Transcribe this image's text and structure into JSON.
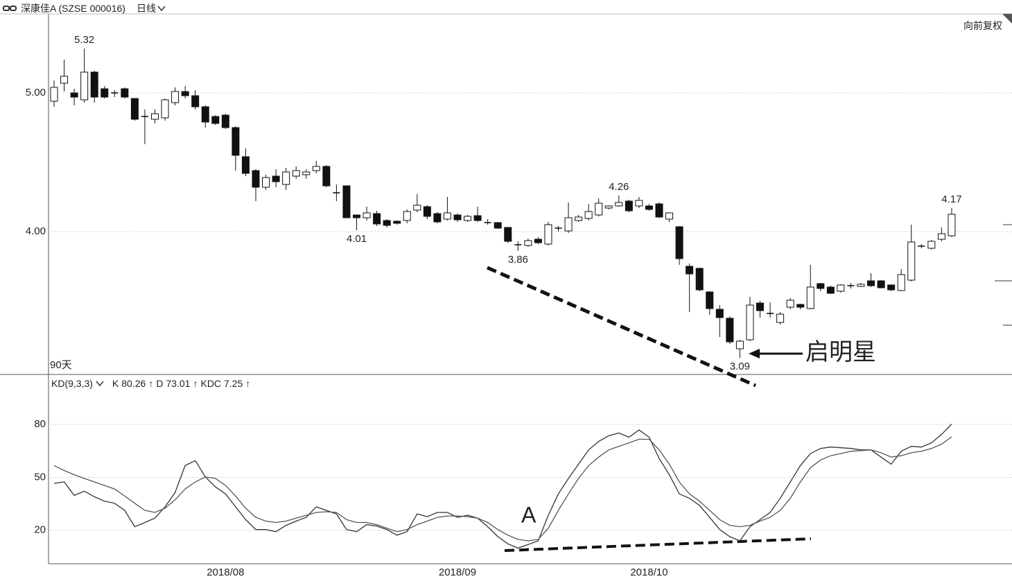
{
  "header": {
    "title": "深康佳A (SZSE 000016)",
    "period": "日线",
    "adjust": "向前复权"
  },
  "chart_data": [
    {
      "type": "candlestick",
      "range_label": "90天",
      "annotation": "启明星",
      "ylim": [
        2.97,
        5.57
      ],
      "yticks": [
        {
          "value": 5,
          "label": "5.00"
        },
        {
          "value": 4,
          "label": "4.00"
        }
      ],
      "grid": true,
      "open": [
        4.94,
        5.07,
        5.0,
        4.95,
        5.15,
        5.03,
        5.0,
        5.03,
        4.96,
        4.83,
        4.81,
        4.82,
        4.93,
        5.01,
        4.98,
        4.9,
        4.83,
        4.84,
        4.75,
        4.54,
        4.44,
        4.32,
        4.4,
        4.34,
        4.4,
        4.41,
        4.44,
        4.47,
        4.28,
        4.33,
        4.12,
        4.1,
        4.13,
        4.08,
        4.075,
        4.08,
        4.155,
        4.18,
        4.13,
        4.09,
        4.12,
        4.08,
        4.115,
        4.065,
        4.065,
        4.03,
        3.905,
        3.9,
        3.945,
        3.91,
        4.025,
        4.005,
        4.08,
        4.095,
        4.12,
        4.17,
        4.185,
        4.22,
        4.185,
        4.185,
        4.2,
        4.09,
        4.035,
        3.75,
        3.735,
        3.565,
        3.44,
        3.375,
        3.155,
        3.22,
        3.485,
        3.41,
        3.345,
        3.455,
        3.475,
        3.445,
        3.625,
        3.6,
        3.57,
        3.61,
        3.605,
        3.645,
        3.645,
        3.615,
        3.575,
        3.65,
        3.895,
        3.88,
        3.945,
        3.97
      ],
      "high": [
        5.09,
        5.24,
        5.03,
        5.32,
        5.16,
        5.05,
        5.02,
        5.04,
        4.96,
        4.88,
        4.88,
        4.96,
        5.04,
        5.05,
        5.02,
        4.91,
        4.84,
        4.85,
        4.76,
        4.6,
        4.45,
        4.41,
        4.45,
        4.46,
        4.47,
        4.45,
        4.51,
        4.48,
        4.34,
        4.33,
        4.12,
        4.18,
        4.15,
        4.09,
        4.08,
        4.16,
        4.27,
        4.19,
        4.14,
        4.25,
        4.13,
        4.12,
        4.18,
        4.09,
        4.07,
        4.03,
        3.93,
        3.95,
        3.96,
        4.07,
        4.04,
        4.21,
        4.12,
        4.2,
        4.24,
        4.19,
        4.26,
        4.23,
        4.25,
        4.2,
        4.21,
        4.14,
        4.04,
        3.77,
        3.74,
        3.57,
        3.47,
        3.39,
        3.22,
        3.53,
        3.5,
        3.49,
        3.42,
        3.52,
        3.48,
        3.76,
        3.63,
        3.61,
        3.62,
        3.63,
        3.63,
        3.7,
        3.65,
        3.62,
        3.73,
        4.05,
        3.91,
        3.94,
        4.03,
        4.17
      ],
      "low": [
        4.9,
        5.01,
        4.91,
        4.93,
        4.93,
        4.96,
        4.97,
        4.96,
        4.8,
        4.63,
        4.78,
        4.8,
        4.91,
        4.96,
        4.88,
        4.75,
        4.77,
        4.74,
        4.44,
        4.4,
        4.22,
        4.3,
        4.32,
        4.3,
        4.38,
        4.38,
        4.42,
        4.32,
        4.22,
        4.1,
        4.01,
        4.08,
        4.04,
        4.03,
        4.05,
        4.06,
        4.14,
        4.09,
        4.06,
        4.08,
        4.07,
        4.07,
        4.07,
        4.05,
        4.02,
        3.92,
        3.86,
        3.89,
        3.91,
        3.9,
        4.0,
        3.99,
        4.07,
        4.08,
        4.11,
        4.16,
        4.18,
        4.14,
        4.17,
        4.15,
        4.1,
        4.07,
        3.76,
        3.42,
        3.57,
        3.4,
        3.24,
        3.19,
        3.09,
        3.21,
        3.38,
        3.38,
        3.33,
        3.44,
        3.44,
        3.44,
        3.57,
        3.55,
        3.56,
        3.59,
        3.6,
        3.6,
        3.59,
        3.57,
        3.57,
        3.64,
        3.88,
        3.87,
        3.93,
        3.96
      ],
      "close": [
        5.04,
        5.12,
        4.97,
        5.15,
        4.97,
        4.97,
        5.0,
        4.97,
        4.81,
        4.83,
        4.85,
        4.95,
        5.01,
        4.98,
        4.9,
        4.79,
        4.78,
        4.75,
        4.55,
        4.42,
        4.32,
        4.39,
        4.36,
        4.43,
        4.44,
        4.43,
        4.47,
        4.33,
        4.28,
        4.1,
        4.1,
        4.135,
        4.055,
        4.045,
        4.06,
        4.145,
        4.19,
        4.11,
        4.07,
        4.135,
        4.085,
        4.11,
        4.08,
        4.065,
        4.025,
        3.93,
        3.905,
        3.935,
        3.92,
        4.05,
        4.025,
        4.1,
        4.105,
        4.145,
        4.205,
        4.185,
        4.21,
        4.15,
        4.225,
        4.16,
        4.105,
        4.135,
        3.805,
        3.695,
        3.58,
        3.445,
        3.38,
        3.205,
        3.21,
        3.47,
        3.43,
        3.41,
        3.405,
        3.505,
        3.455,
        3.6,
        3.59,
        3.555,
        3.615,
        3.61,
        3.62,
        3.61,
        3.595,
        3.58,
        3.69,
        3.925,
        3.895,
        3.93,
        3.985,
        4.125
      ],
      "price_labels": [
        5.32,
        4.01,
        3.86,
        4.26,
        3.09,
        4.17
      ]
    },
    {
      "type": "line",
      "title": "KD(9,3,3)",
      "annotation": "A",
      "ylim": [
        1,
        108
      ],
      "yticks": [
        80,
        50,
        20
      ],
      "grid": true,
      "categories": [
        null,
        null,
        null,
        null,
        null,
        null,
        null,
        null,
        null,
        null,
        null,
        null,
        null,
        null,
        null,
        null,
        null,
        "2018/08",
        null,
        null,
        null,
        null,
        null,
        null,
        null,
        null,
        null,
        null,
        null,
        null,
        null,
        null,
        null,
        null,
        null,
        null,
        null,
        null,
        null,
        null,
        "2018/09",
        null,
        null,
        null,
        null,
        null,
        null,
        null,
        null,
        null,
        null,
        null,
        null,
        null,
        null,
        null,
        null,
        null,
        null,
        "2018/10",
        null,
        null,
        null,
        null,
        null,
        null,
        null,
        null,
        null,
        null,
        null,
        null,
        null,
        null,
        null,
        null,
        null,
        null,
        null,
        null,
        null,
        null,
        null,
        null,
        null,
        null,
        null,
        null,
        null,
        null
      ],
      "series": [
        {
          "name": "K",
          "color": "#333333",
          "trend": "↑",
          "values": [
            46.6,
            47.4,
            39.8,
            42.2,
            39,
            36.5,
            35.3,
            31.3,
            22,
            24.4,
            26.9,
            33.3,
            41.4,
            56.7,
            59.5,
            50.2,
            44.6,
            40.6,
            33.3,
            26,
            20.4,
            20.4,
            19.2,
            22.8,
            25.2,
            27.3,
            33.3,
            31.3,
            29.3,
            20.4,
            19.2,
            23.2,
            22.4,
            20.4,
            17.2,
            19.2,
            29.3,
            27.7,
            30.1,
            30.1,
            27.3,
            28.5,
            26.9,
            22,
            16.4,
            12.3,
            9.9,
            11.9,
            14,
            28.5,
            40.6,
            49.4,
            57.5,
            65.6,
            70.4,
            73.6,
            75.2,
            72.8,
            76.9,
            72.8,
            60.7,
            51.5,
            40.6,
            38.1,
            34.1,
            27.3,
            20.4,
            16.4,
            14,
            22,
            26,
            30.1,
            38.1,
            47.4,
            56.7,
            63.5,
            66.4,
            67.2,
            66.8,
            66.4,
            65.6,
            65.6,
            61.5,
            57.5,
            64.8,
            67.6,
            67.2,
            69.6,
            74.4,
            80.26
          ]
        },
        {
          "name": "D",
          "color": "#555555",
          "trend": "↑",
          "values": [
            56.7,
            53.9,
            51.5,
            49.4,
            47.4,
            45.4,
            43.4,
            39.4,
            35.3,
            31.3,
            30.1,
            32.5,
            37.3,
            43.4,
            47.4,
            50.2,
            49.4,
            45.4,
            39.4,
            32.5,
            27.3,
            25.2,
            24.4,
            25.2,
            26.9,
            28.5,
            30.1,
            30.5,
            30.1,
            26,
            24.4,
            24.4,
            23.2,
            21.2,
            19.2,
            20.4,
            23.2,
            25.2,
            27.3,
            28.1,
            28.1,
            27.7,
            26.9,
            24.4,
            20.4,
            17.2,
            14.8,
            14,
            14.8,
            21.2,
            31.3,
            40.6,
            49.4,
            56.7,
            61.5,
            65.6,
            67.6,
            69.6,
            71.6,
            71.6,
            65.6,
            57.5,
            47.4,
            40.6,
            36.5,
            31.3,
            26,
            22.8,
            22,
            22.8,
            25.2,
            27.3,
            31.3,
            38.1,
            47.4,
            55.5,
            59.9,
            62.3,
            63.5,
            64.8,
            65.2,
            65.6,
            64,
            61.5,
            62.3,
            64,
            64.8,
            66.4,
            68.8,
            73.01
          ]
        }
      ],
      "kdc": {
        "name": "KDC",
        "value": 7.25,
        "trend": "↑"
      }
    }
  ]
}
